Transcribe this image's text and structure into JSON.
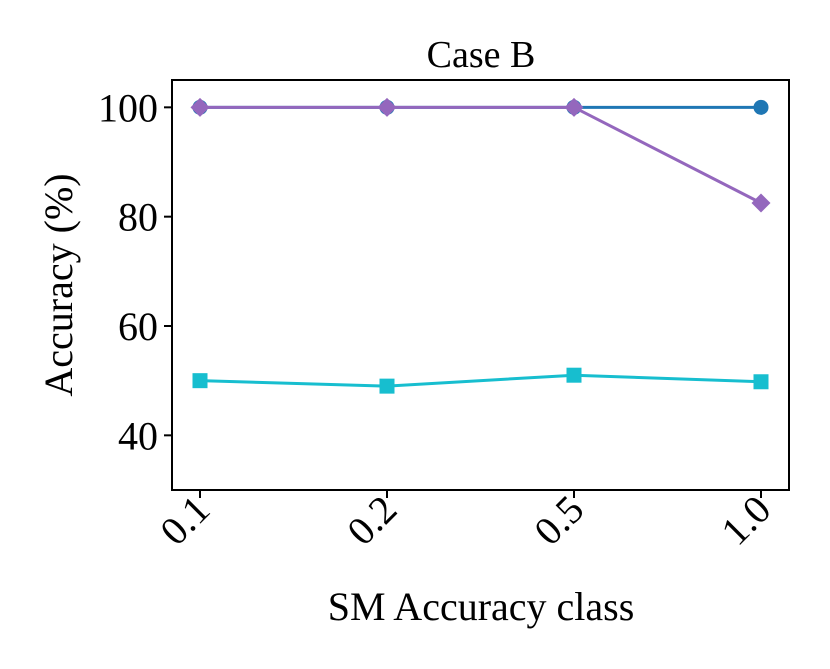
{
  "chart_data": {
    "type": "line",
    "title": "Case B",
    "xlabel": "SM Accuracy class",
    "ylabel": "Accuracy (%)",
    "categories": [
      "0.1",
      "0.2",
      "0.5",
      "1.0"
    ],
    "ylim": [
      30,
      105
    ],
    "yticks": [
      40,
      60,
      80,
      100
    ],
    "grid": false,
    "legend": "none",
    "series": [
      {
        "color": "#1f77b4",
        "marker": "circle",
        "values": [
          100,
          100,
          100,
          100
        ]
      },
      {
        "color": "#9467bd",
        "marker": "diamond",
        "values": [
          100,
          100,
          100,
          82.5
        ]
      },
      {
        "color": "#17becf",
        "marker": "square",
        "values": [
          50,
          49,
          51,
          49.8
        ]
      }
    ]
  }
}
